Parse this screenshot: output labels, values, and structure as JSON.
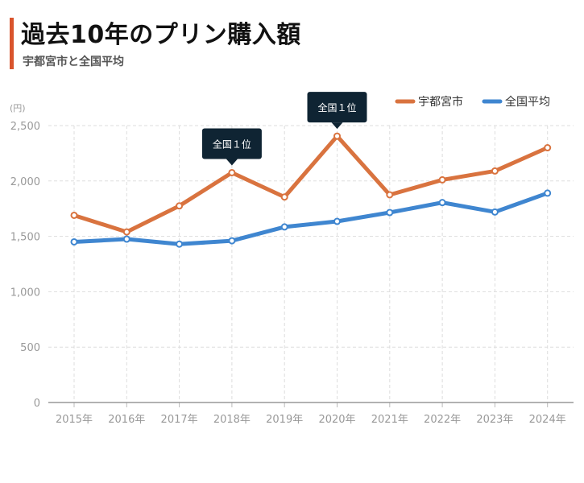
{
  "header": {
    "title": "過去10年のプリン購入額",
    "subtitle": "宇都宮市と全国平均"
  },
  "chart_data": {
    "type": "line",
    "ylabel": "(円)",
    "ylim": [
      0,
      2500
    ],
    "yticks": [
      "0",
      "500",
      "1,000",
      "1,500",
      "2,000",
      "2,500"
    ],
    "ytick_values": [
      0,
      500,
      1000,
      1500,
      2000,
      2500
    ],
    "categories": [
      "2015年",
      "2016年",
      "2017年",
      "2018年",
      "2019年",
      "2020年",
      "2021年",
      "2022年",
      "2023年",
      "2024年"
    ],
    "series": [
      {
        "name": "宇都宮市",
        "color": "#d9733f",
        "values": [
          1690,
          1540,
          1775,
          2075,
          1855,
          2405,
          1875,
          2010,
          2090,
          2300
        ]
      },
      {
        "name": "全国平均",
        "color": "#3f86d0",
        "values": [
          1450,
          1475,
          1430,
          1460,
          1585,
          1635,
          1715,
          1805,
          1720,
          1890
        ]
      }
    ],
    "annotations": [
      {
        "text": "全国１位",
        "series": 0,
        "index": 3
      },
      {
        "text": "全国１位",
        "series": 0,
        "index": 5
      }
    ],
    "grid": true,
    "legend": "top-right"
  }
}
